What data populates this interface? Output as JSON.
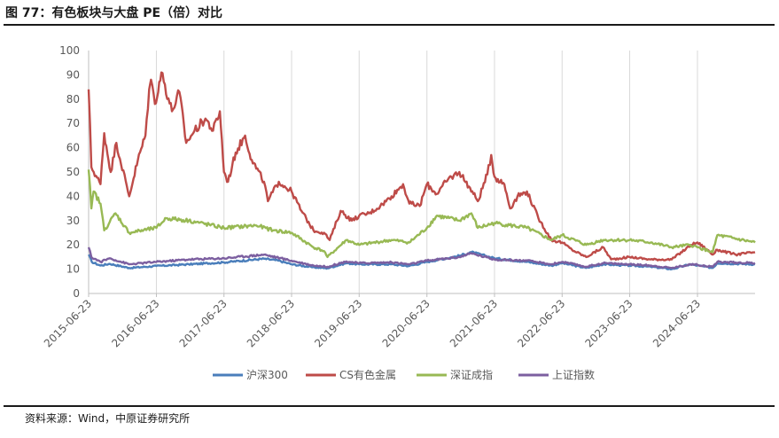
{
  "figure": {
    "title": "图 77：有色板块与大盘 PE（倍）对比",
    "source": "资料来源：Wind，中原证券研究所"
  },
  "chart_data": {
    "type": "line",
    "title": "图 77：有色板块与大盘 PE（倍）对比",
    "ylim": [
      0,
      100
    ],
    "yticks": [
      0,
      10,
      20,
      30,
      40,
      50,
      60,
      70,
      80,
      90,
      100
    ],
    "xlim": [
      "2015-06-23",
      "2025-04-30"
    ],
    "xticks": [
      "2015-06-23",
      "2016-06-23",
      "2017-06-23",
      "2018-06-23",
      "2019-06-23",
      "2020-06-23",
      "2021-06-23",
      "2022-06-23",
      "2023-06-23",
      "2024-06-23"
    ],
    "grid": "vertical",
    "legend_position": "bottom",
    "series": [
      {
        "name": "沪深300",
        "color": "#4a7ebb",
        "points": [
          [
            "2015-06-23",
            16
          ],
          [
            "2015-07-10",
            13
          ],
          [
            "2015-08-25",
            11.5
          ],
          [
            "2015-10-15",
            12.2
          ],
          [
            "2016-01-28",
            10.5
          ],
          [
            "2016-06-23",
            11.3
          ],
          [
            "2016-12-15",
            12
          ],
          [
            "2017-06-23",
            12.8
          ],
          [
            "2018-01-25",
            14.3
          ],
          [
            "2018-04-15",
            13.5
          ],
          [
            "2018-06-23",
            12
          ],
          [
            "2018-10-15",
            10.8
          ],
          [
            "2019-01-03",
            10.4
          ],
          [
            "2019-04-15",
            12.5
          ],
          [
            "2019-06-23",
            12
          ],
          [
            "2019-12-15",
            12
          ],
          [
            "2020-03-20",
            11.3
          ],
          [
            "2020-06-23",
            13
          ],
          [
            "2020-12-15",
            15.5
          ],
          [
            "2021-02-18",
            17
          ],
          [
            "2021-06-23",
            14.5
          ],
          [
            "2021-12-15",
            13
          ],
          [
            "2022-04-26",
            11.5
          ],
          [
            "2022-06-23",
            12.5
          ],
          [
            "2022-10-31",
            10.5
          ],
          [
            "2023-01-31",
            12
          ],
          [
            "2023-06-23",
            11.5
          ],
          [
            "2023-10-15",
            11
          ],
          [
            "2024-02-05",
            10
          ],
          [
            "2024-05-15",
            12
          ],
          [
            "2024-06-23",
            11.5
          ],
          [
            "2024-09-13",
            10.5
          ],
          [
            "2024-10-08",
            12.5
          ],
          [
            "2025-04-30",
            12
          ]
        ]
      },
      {
        "name": "CS有色金属",
        "color": "#be4b48",
        "points": [
          [
            "2015-06-23",
            84
          ],
          [
            "2015-07-08",
            52
          ],
          [
            "2015-08-26",
            45
          ],
          [
            "2015-09-15",
            66
          ],
          [
            "2015-10-20",
            50
          ],
          [
            "2015-11-20",
            62
          ],
          [
            "2016-01-28",
            40
          ],
          [
            "2016-03-15",
            55
          ],
          [
            "2016-04-25",
            65
          ],
          [
            "2016-05-15",
            84
          ],
          [
            "2016-05-25",
            88
          ],
          [
            "2016-06-15",
            78
          ],
          [
            "2016-07-20",
            91
          ],
          [
            "2016-09-15",
            75
          ],
          [
            "2016-10-25",
            83
          ],
          [
            "2016-12-01",
            62
          ],
          [
            "2017-01-15",
            67
          ],
          [
            "2017-03-15",
            72
          ],
          [
            "2017-04-25",
            67
          ],
          [
            "2017-06-01",
            75
          ],
          [
            "2017-06-23",
            50
          ],
          [
            "2017-07-15",
            46
          ],
          [
            "2017-08-25",
            58
          ],
          [
            "2017-10-15",
            65
          ],
          [
            "2017-11-20",
            55
          ],
          [
            "2018-01-25",
            46
          ],
          [
            "2018-02-15",
            38
          ],
          [
            "2018-04-15",
            46
          ],
          [
            "2018-06-23",
            42
          ],
          [
            "2018-08-15",
            34
          ],
          [
            "2018-10-19",
            26
          ],
          [
            "2018-12-15",
            25
          ],
          [
            "2019-01-15",
            22
          ],
          [
            "2019-03-15",
            34
          ],
          [
            "2019-05-15",
            30
          ],
          [
            "2019-06-23",
            32
          ],
          [
            "2019-08-15",
            33
          ],
          [
            "2019-10-15",
            36
          ],
          [
            "2019-12-15",
            40
          ],
          [
            "2020-02-15",
            45
          ],
          [
            "2020-03-20",
            37
          ],
          [
            "2020-05-15",
            36
          ],
          [
            "2020-06-23",
            45
          ],
          [
            "2020-08-15",
            41
          ],
          [
            "2020-10-15",
            47
          ],
          [
            "2020-12-15",
            50
          ],
          [
            "2021-02-05",
            44
          ],
          [
            "2021-03-25",
            38
          ],
          [
            "2021-05-15",
            49
          ],
          [
            "2021-06-05",
            57
          ],
          [
            "2021-06-23",
            48
          ],
          [
            "2021-08-15",
            45
          ],
          [
            "2021-09-15",
            35
          ],
          [
            "2021-10-25",
            40
          ],
          [
            "2021-12-15",
            42
          ],
          [
            "2022-02-15",
            31
          ],
          [
            "2022-04-26",
            22
          ],
          [
            "2022-06-23",
            21
          ],
          [
            "2022-08-15",
            18
          ],
          [
            "2022-10-31",
            15
          ],
          [
            "2023-01-31",
            19
          ],
          [
            "2023-03-15",
            14
          ],
          [
            "2023-06-23",
            15
          ],
          [
            "2023-10-15",
            14
          ],
          [
            "2024-02-05",
            14
          ],
          [
            "2024-05-20",
            20
          ],
          [
            "2024-06-23",
            21
          ],
          [
            "2024-08-15",
            18
          ],
          [
            "2024-09-13",
            16
          ],
          [
            "2024-10-08",
            18
          ],
          [
            "2025-01-15",
            16
          ],
          [
            "2025-04-30",
            17
          ]
        ]
      },
      {
        "name": "深证成指",
        "color": "#98b954",
        "points": [
          [
            "2015-06-23",
            51
          ],
          [
            "2015-07-08",
            35
          ],
          [
            "2015-07-20",
            42
          ],
          [
            "2015-08-26",
            37
          ],
          [
            "2015-09-15",
            26
          ],
          [
            "2015-11-15",
            33
          ],
          [
            "2016-01-28",
            25
          ],
          [
            "2016-06-23",
            27
          ],
          [
            "2016-08-15",
            31
          ],
          [
            "2016-12-15",
            30
          ],
          [
            "2017-06-23",
            27
          ],
          [
            "2017-12-15",
            28
          ],
          [
            "2018-03-15",
            26
          ],
          [
            "2018-06-23",
            25
          ],
          [
            "2018-10-19",
            19
          ],
          [
            "2018-12-15",
            17.5
          ],
          [
            "2019-01-03",
            15
          ],
          [
            "2019-04-15",
            22
          ],
          [
            "2019-06-23",
            20
          ],
          [
            "2019-12-15",
            22
          ],
          [
            "2020-03-20",
            21
          ],
          [
            "2020-06-23",
            27
          ],
          [
            "2020-08-15",
            32
          ],
          [
            "2020-12-15",
            30
          ],
          [
            "2021-02-18",
            33
          ],
          [
            "2021-03-25",
            27
          ],
          [
            "2021-06-23",
            29
          ],
          [
            "2021-12-15",
            27
          ],
          [
            "2022-04-26",
            22
          ],
          [
            "2022-06-23",
            24
          ],
          [
            "2022-10-31",
            20
          ],
          [
            "2023-01-31",
            22
          ],
          [
            "2023-06-23",
            22
          ],
          [
            "2023-10-15",
            21
          ],
          [
            "2024-02-05",
            19
          ],
          [
            "2024-05-15",
            20
          ],
          [
            "2024-06-23",
            19
          ],
          [
            "2024-09-13",
            17
          ],
          [
            "2024-10-08",
            24
          ],
          [
            "2025-04-30",
            21
          ]
        ]
      },
      {
        "name": "上证指数",
        "color": "#7c5fa0",
        "points": [
          [
            "2015-06-23",
            19
          ],
          [
            "2015-07-08",
            15
          ],
          [
            "2015-08-26",
            13
          ],
          [
            "2015-10-15",
            14.5
          ],
          [
            "2016-01-28",
            12
          ],
          [
            "2016-06-23",
            13
          ],
          [
            "2016-12-15",
            14
          ],
          [
            "2017-06-23",
            14.5
          ],
          [
            "2018-01-25",
            16
          ],
          [
            "2018-06-23",
            13.5
          ],
          [
            "2018-10-19",
            11.5
          ],
          [
            "2019-01-03",
            11
          ],
          [
            "2019-04-15",
            13.2
          ],
          [
            "2019-06-23",
            12.5
          ],
          [
            "2019-12-15",
            12.8
          ],
          [
            "2020-03-20",
            12
          ],
          [
            "2020-06-23",
            13.5
          ],
          [
            "2020-12-15",
            15
          ],
          [
            "2021-02-18",
            16.5
          ],
          [
            "2021-06-23",
            14
          ],
          [
            "2021-12-15",
            13.5
          ],
          [
            "2022-04-26",
            12
          ],
          [
            "2022-06-23",
            13
          ],
          [
            "2022-10-31",
            11
          ],
          [
            "2023-01-31",
            12.5
          ],
          [
            "2023-06-23",
            12
          ],
          [
            "2023-10-15",
            11.5
          ],
          [
            "2024-02-05",
            10.5
          ],
          [
            "2024-05-15",
            12
          ],
          [
            "2024-06-23",
            11.8
          ],
          [
            "2024-09-13",
            11
          ],
          [
            "2024-10-08",
            13
          ],
          [
            "2025-04-30",
            12.5
          ]
        ]
      }
    ]
  }
}
